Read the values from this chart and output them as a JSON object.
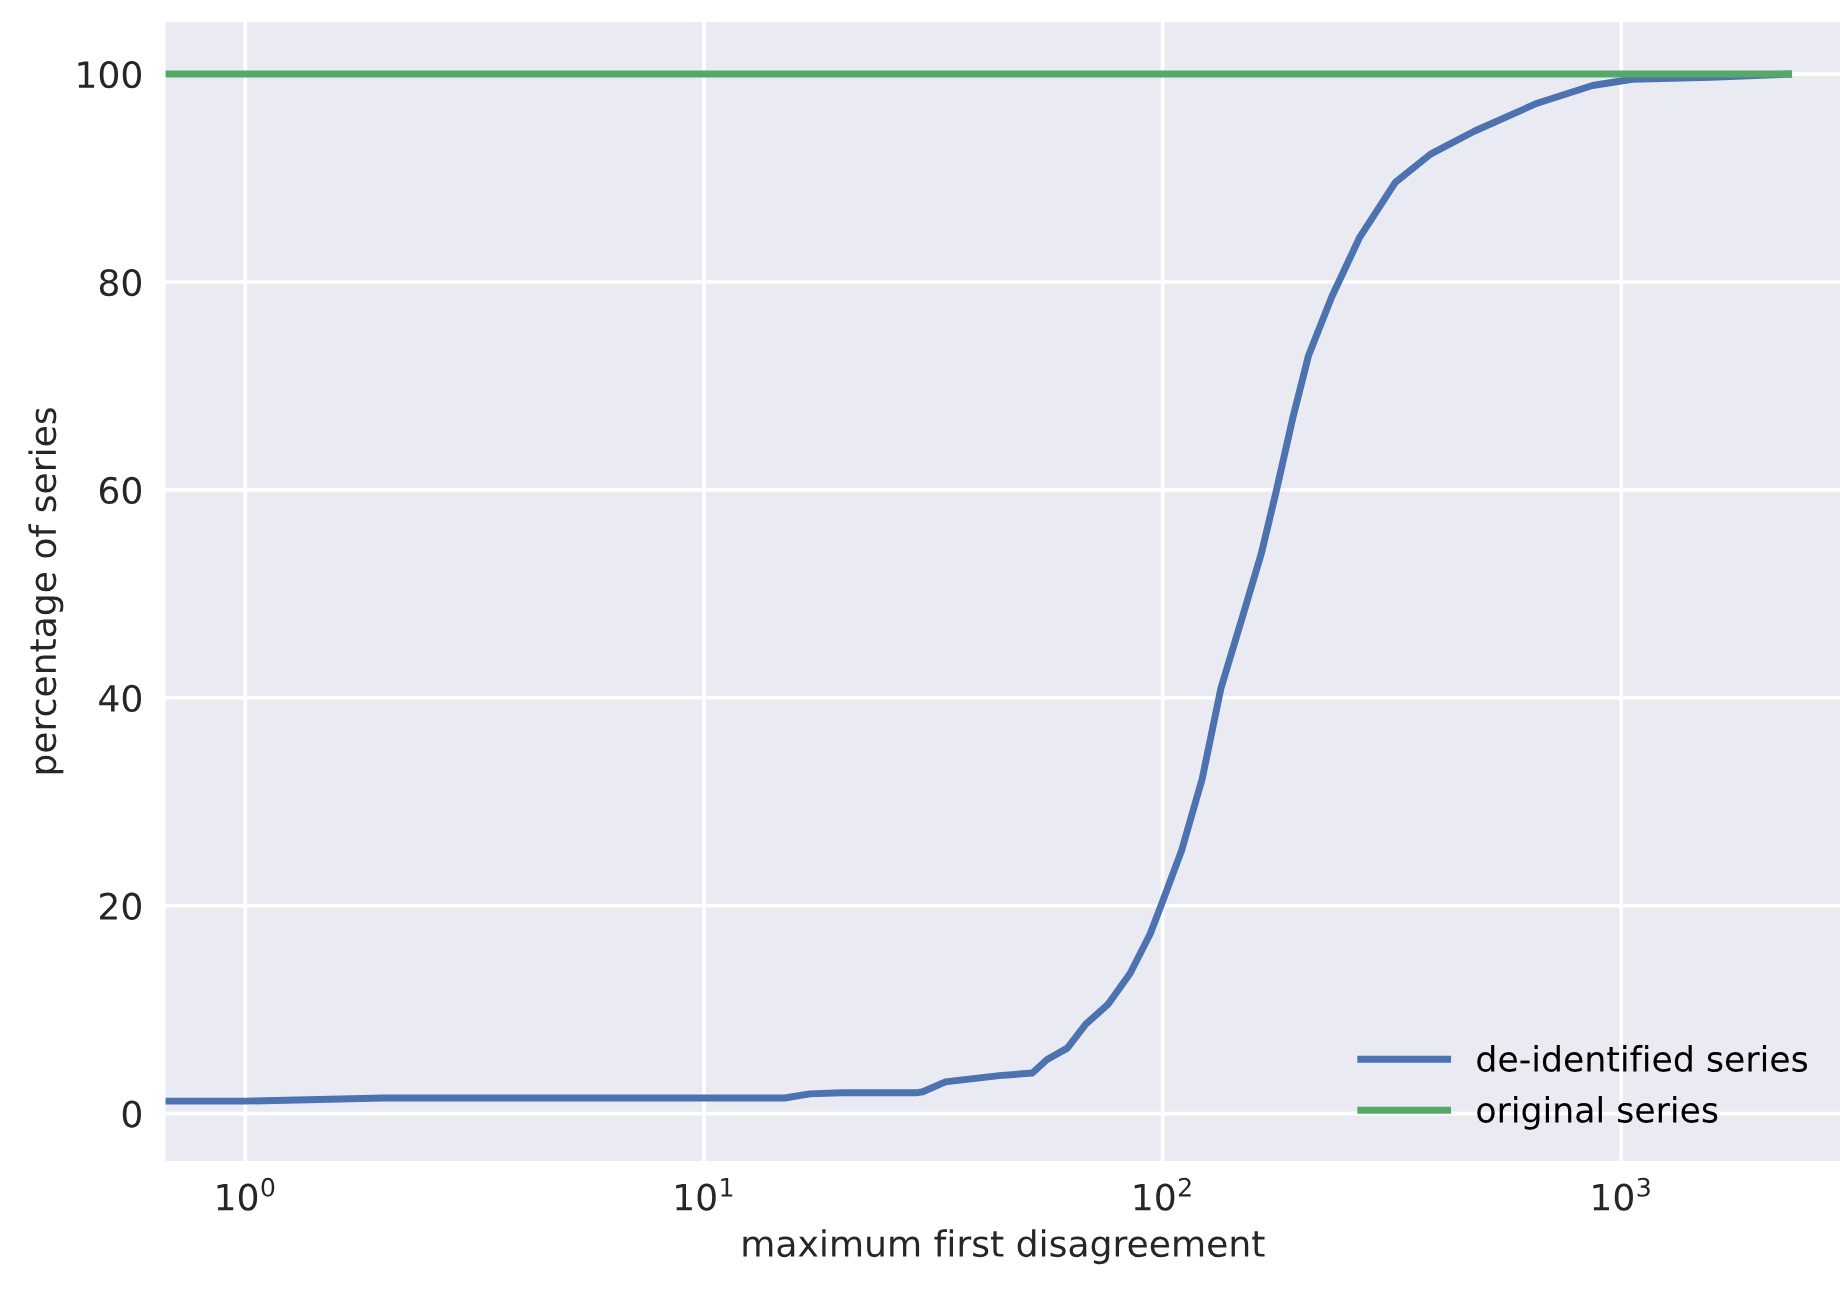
{
  "chart_data": {
    "type": "line",
    "xlabel": "maximum first disagreement",
    "ylabel": "percentage of series",
    "log": "x",
    "xlim": [
      0.67,
      3000
    ],
    "ylim": [
      -4.55,
      105
    ],
    "xticks": [
      {
        "value": 1,
        "label": "10$^{0}$"
      },
      {
        "value": 10,
        "label": "10$^{1}$"
      },
      {
        "value": 100,
        "label": "10$^{2}$"
      },
      {
        "value": 1000,
        "label": "10$^{3}$"
      }
    ],
    "yticks": [
      0,
      20,
      40,
      60,
      80,
      100
    ],
    "grid": true,
    "legend": "bottom right",
    "marker": "none",
    "line_style": "solid",
    "series": [
      {
        "name": "de-identified series",
        "color": "#4c72b0",
        "x": [
          0.67,
          1,
          2,
          15,
          17,
          20,
          29,
          30,
          33.6,
          44,
          52,
          56,
          62,
          68,
          76,
          85,
          94,
          100,
          110,
          122,
          134,
          151,
          164,
          177,
          192,
          208,
          234,
          269,
          322,
          384,
          478,
          656,
          866,
          1057,
          1571,
          2317
        ],
        "values": [
          1.2,
          1.2,
          1.5,
          1.5,
          1.9,
          2.0,
          2.0,
          2.1,
          3.05,
          3.65,
          3.9,
          5.2,
          6.3,
          8.6,
          10.5,
          13.5,
          17.3,
          20.4,
          25.3,
          32.2,
          40.9,
          48.5,
          53.8,
          59.9,
          66.8,
          72.9,
          78.6,
          84.3,
          89.6,
          92.3,
          94.5,
          97.2,
          98.9,
          99.5,
          99.7,
          100
        ]
      },
      {
        "name": "original series",
        "color": "#55a868",
        "x": [
          0.67,
          2317
        ],
        "values": [
          100,
          100
        ]
      }
    ]
  }
}
